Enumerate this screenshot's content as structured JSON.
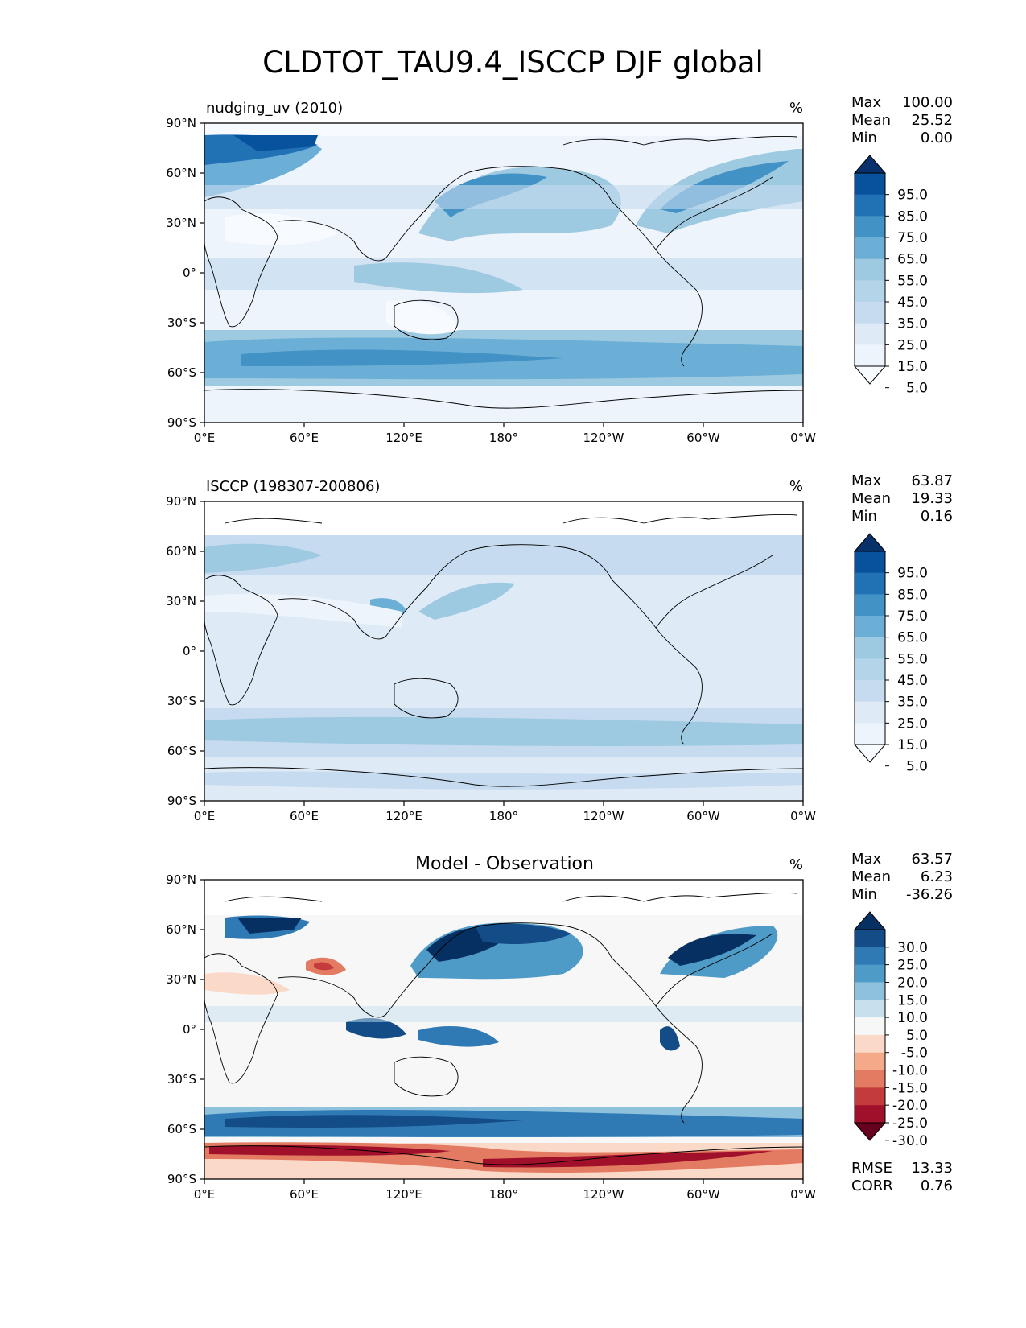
{
  "title": "CLDTOT_TAU9.4_ISCCP DJF global",
  "lat_ticks": [
    "90°N",
    "60°N",
    "30°N",
    "0°",
    "30°S",
    "60°S",
    "90°S"
  ],
  "lon_ticks": [
    "0°E",
    "60°E",
    "120°E",
    "180°",
    "120°W",
    "60°W",
    "0°W"
  ],
  "panels": [
    {
      "left_title": "nudging_uv (2010)",
      "center_title": "",
      "units": "%",
      "stats": [
        {
          "label": "Max",
          "value": "100.00"
        },
        {
          "label": "Mean",
          "value": "25.52"
        },
        {
          "label": "Min",
          "value": "0.00"
        }
      ],
      "colorbar_labels": [
        "95.0",
        "85.0",
        "75.0",
        "65.0",
        "55.0",
        "45.0",
        "35.0",
        "25.0",
        "15.0",
        "5.0"
      ],
      "colorbar_colors": [
        "#08306b",
        "#08519c",
        "#2171b5",
        "#4292c6",
        "#6baed6",
        "#9ecae1",
        "#b4d4ea",
        "#c6dbef",
        "#deebf7",
        "#eef4fb",
        "#f7fbff"
      ],
      "footer": []
    },
    {
      "left_title": "ISCCP (198307-200806)",
      "center_title": "",
      "units": "%",
      "stats": [
        {
          "label": "Max",
          "value": "63.87"
        },
        {
          "label": "Mean",
          "value": "19.33"
        },
        {
          "label": "Min",
          "value": "0.16"
        }
      ],
      "colorbar_labels": [
        "95.0",
        "85.0",
        "75.0",
        "65.0",
        "55.0",
        "45.0",
        "35.0",
        "25.0",
        "15.0",
        "5.0"
      ],
      "colorbar_colors": [
        "#08306b",
        "#08519c",
        "#2171b5",
        "#4292c6",
        "#6baed6",
        "#9ecae1",
        "#b4d4ea",
        "#c6dbef",
        "#deebf7",
        "#eef4fb",
        "#f7fbff"
      ],
      "footer": []
    },
    {
      "left_title": "",
      "center_title": "Model - Observation",
      "units": "%",
      "stats": [
        {
          "label": "Max",
          "value": "63.57"
        },
        {
          "label": "Mean",
          "value": "6.23"
        },
        {
          "label": "Min",
          "value": "-36.26"
        }
      ],
      "colorbar_labels": [
        "30.0",
        "25.0",
        "20.0",
        "15.0",
        "10.0",
        "5.0",
        "-5.0",
        "-10.0",
        "-15.0",
        "-20.0",
        "-25.0",
        "-30.0"
      ],
      "colorbar_colors": [
        "#053061",
        "#134c87",
        "#2f79b5",
        "#4f9bc7",
        "#8ec1dc",
        "#c6e0ed",
        "#f7f7f7",
        "#fbd9c9",
        "#f4aa88",
        "#e27b62",
        "#c43b3b",
        "#a0102a",
        "#67001f"
      ],
      "footer": [
        {
          "label": "RMSE",
          "value": "13.33"
        },
        {
          "label": "CORR",
          "value": "0.76"
        }
      ]
    }
  ]
}
